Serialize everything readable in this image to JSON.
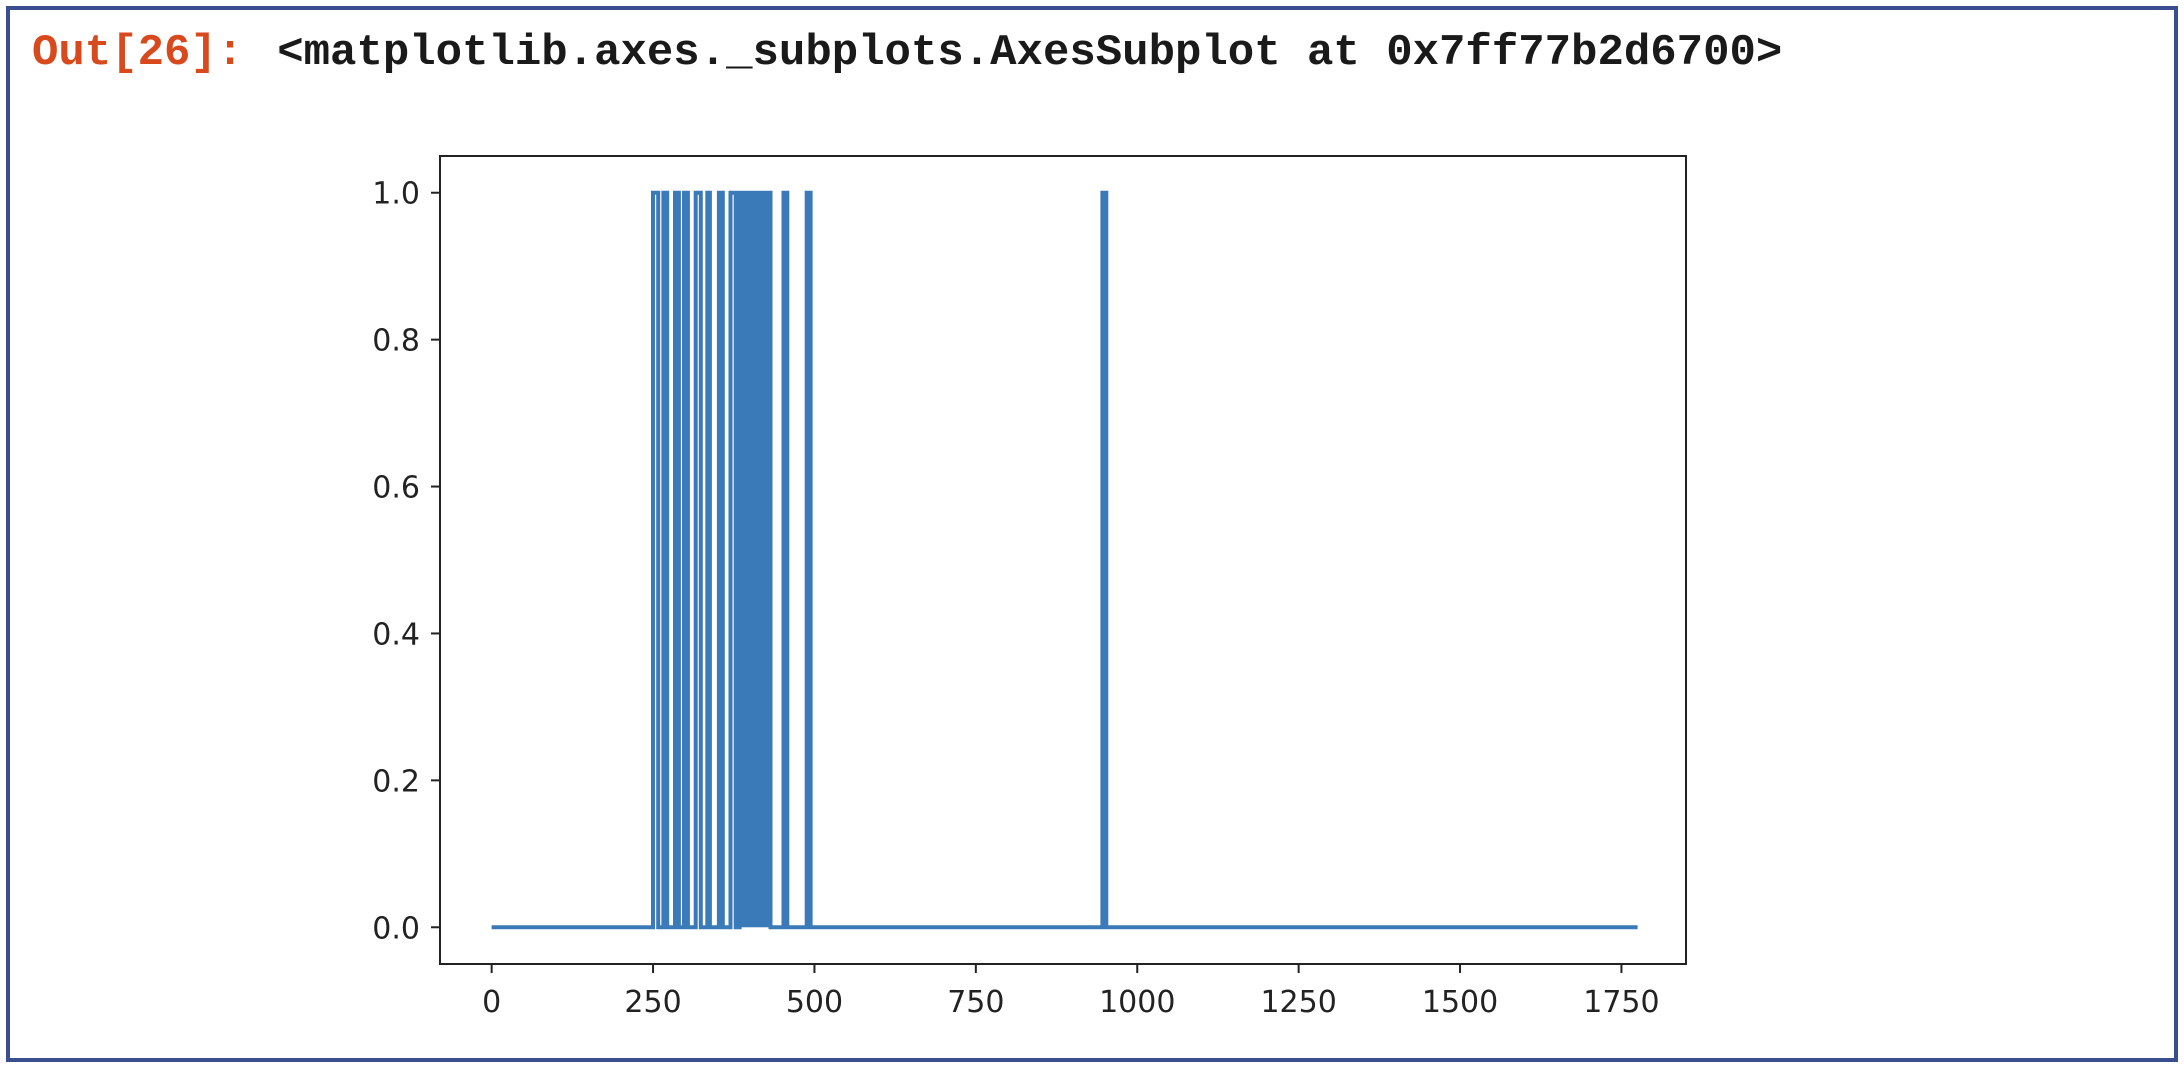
{
  "cell": {
    "prompt": "Out[26]:",
    "output_text": "<matplotlib.axes._subplots.AxesSubplot at 0x7ff77b2d6700>"
  },
  "colors": {
    "frame": "#3a4f8f",
    "prompt": "#d84a1e",
    "series": "#3b7ab8",
    "axes": "#222222"
  },
  "chart_data": {
    "type": "line",
    "title": "",
    "xlabel": "",
    "ylabel": "",
    "xlim": [
      -80,
      1850
    ],
    "ylim": [
      -0.05,
      1.05
    ],
    "x_ticks": [
      0,
      250,
      500,
      750,
      1000,
      1250,
      1500,
      1750
    ],
    "x_tick_labels": [
      "0",
      "250",
      "500",
      "750",
      "1000",
      "1250",
      "1500",
      "1750"
    ],
    "y_ticks": [
      0.0,
      0.2,
      0.4,
      0.6,
      0.8,
      1.0
    ],
    "y_tick_labels": [
      "0.0",
      "0.2",
      "0.4",
      "0.6",
      "0.8",
      "1.0"
    ],
    "grid": false,
    "legend": false,
    "series": [
      {
        "x_range": [
          0,
          1775
        ],
        "baseline": 0,
        "spike_value": 1,
        "spikes": [
          [
            250,
            258
          ],
          [
            266,
            272
          ],
          [
            284,
            290
          ],
          [
            298,
            304
          ],
          [
            316,
            324
          ],
          [
            334,
            338
          ],
          [
            352,
            358
          ],
          [
            370,
            378
          ],
          [
            384,
            432
          ],
          [
            452,
            458
          ],
          [
            488,
            494
          ],
          [
            946,
            952
          ]
        ]
      }
    ]
  }
}
